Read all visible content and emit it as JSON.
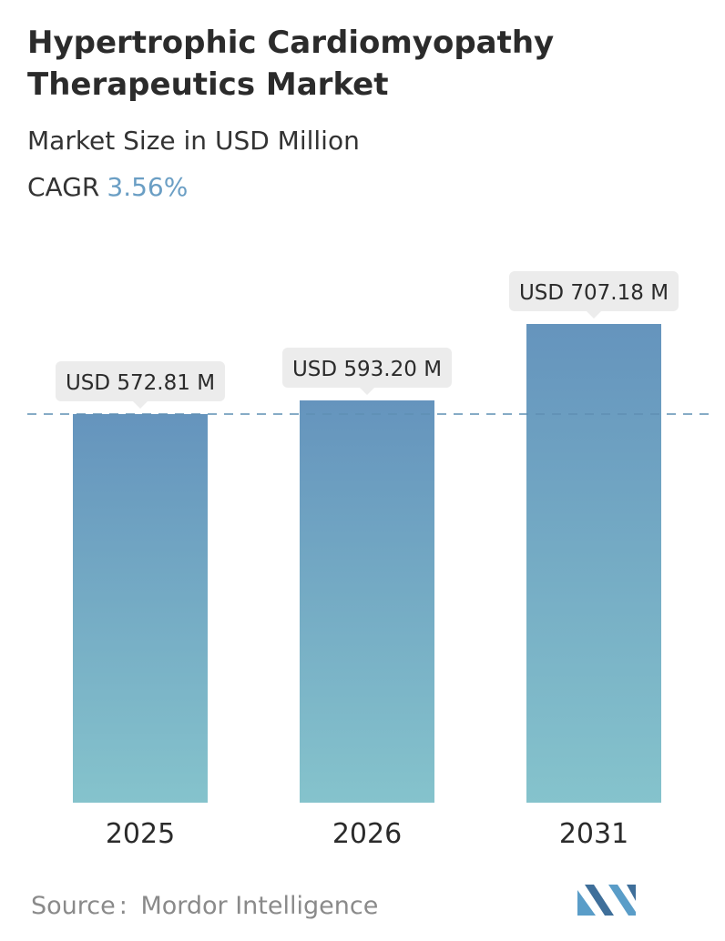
{
  "header": {
    "title": "Hypertrophic Cardiomyopathy Therapeutics Market",
    "subtitle": "Market Size in USD Million",
    "cagr_label": "CAGR",
    "cagr_value": "3.56%"
  },
  "chart_data": {
    "type": "bar",
    "categories": [
      "2025",
      "2026",
      "2031"
    ],
    "values": [
      572.81,
      593.2,
      707.18
    ],
    "data_labels": [
      "USD 572.81 M",
      "USD 593.20 M",
      "USD 707.18 M"
    ],
    "title": "Hypertrophic Cardiomyopathy Therapeutics Market",
    "xlabel": "",
    "ylabel": "",
    "grid": false,
    "reference_line": 572.81,
    "colors": {
      "bar_top": "#6594bd",
      "bar_bottom": "#85c3cc",
      "dashed_line": "#5f8fb3",
      "label_bg": "#ececec"
    }
  },
  "footer": {
    "source_label": "Source",
    "source_separator": ":",
    "source_value": "Mordor Intelligence",
    "logo_name": "mordor-intelligence-logo",
    "logo_colors": [
      "#5a9dc8",
      "#3f6f9a"
    ]
  }
}
